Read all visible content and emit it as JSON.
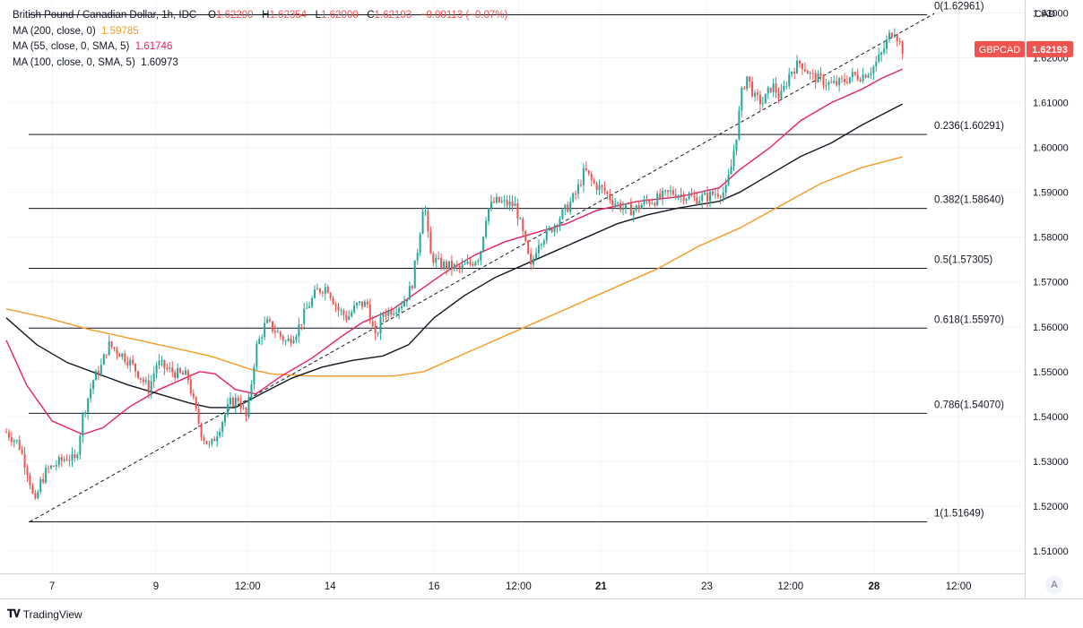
{
  "header": {
    "symbol_title": "British Pound / Canadian Dollar, 1h, IDC",
    "open_label": "O",
    "open": "1.62200",
    "high_label": "H",
    "high": "1.62354",
    "low_label": "L",
    "low": "1.62000",
    "close_label": "C",
    "close": "1.62193",
    "change": "−0.00113 (−0.07%)",
    "ma200_label": "MA (200, close, 0)",
    "ma200_value": "1.59785",
    "ma55_label": "MA (55, close, 0, SMA, 5)",
    "ma55_value": "1.61746",
    "ma100_label": "MA (100, close, 0, SMA, 5)",
    "ma100_value": "1.60973"
  },
  "axis_unit": "CAD",
  "price_badge": {
    "symbol": "GBPCAD",
    "price": "1.62193"
  },
  "brand": {
    "name": "TradingView"
  },
  "auto_scale_button": "A",
  "colors": {
    "up": "#26a69a",
    "down": "#ef5350",
    "ma200": "#f59a23",
    "ma55": "#e91e63",
    "ma100": "#131722",
    "fib": "#131722",
    "grid": "#f0f3fa"
  },
  "chart_data": {
    "type": "candlestick",
    "ylim": [
      1.505,
      1.6325
    ],
    "y_ticks": [
      "1.51000",
      "1.52000",
      "1.53000",
      "1.54000",
      "1.55000",
      "1.56000",
      "1.57000",
      "1.58000",
      "1.59000",
      "1.60000",
      "1.61000",
      "1.62000",
      "1.63000"
    ],
    "x_ticks": [
      {
        "t": 0.045,
        "label": "7",
        "bold": false
      },
      {
        "t": 0.147,
        "label": "9",
        "bold": false
      },
      {
        "t": 0.237,
        "label": "12:00",
        "bold": false
      },
      {
        "t": 0.318,
        "label": "14",
        "bold": false
      },
      {
        "t": 0.42,
        "label": "16",
        "bold": false
      },
      {
        "t": 0.503,
        "label": "12:00",
        "bold": false
      },
      {
        "t": 0.584,
        "label": "21",
        "bold": true
      },
      {
        "t": 0.688,
        "label": "23",
        "bold": false
      },
      {
        "t": 0.77,
        "label": "12:00",
        "bold": false
      },
      {
        "t": 0.852,
        "label": "28",
        "bold": true
      },
      {
        "t": 0.935,
        "label": "12:00",
        "bold": false
      }
    ],
    "fib_levels": [
      {
        "ratio": "0",
        "price": 1.62961,
        "label": "0(1.62961)"
      },
      {
        "ratio": "0.236",
        "price": 1.60291,
        "label": "0.236(1.60291)"
      },
      {
        "ratio": "0.382",
        "price": 1.5864,
        "label": "0.382(1.58640)"
      },
      {
        "ratio": "0.5",
        "price": 1.57305,
        "label": "0.5(1.57305)"
      },
      {
        "ratio": "0.618",
        "price": 1.5597,
        "label": "0.618(1.55970)"
      },
      {
        "ratio": "0.786",
        "price": 1.5407,
        "label": "0.786(1.54070)"
      },
      {
        "ratio": "1",
        "price": 1.51649,
        "label": "1(1.51649)"
      }
    ],
    "trendline": {
      "from": {
        "t": 0.023,
        "price": 1.5165
      },
      "to": {
        "t": 0.892,
        "price": 1.6295
      }
    },
    "price_path": [
      [
        0.0,
        1.5365
      ],
      [
        0.012,
        1.534
      ],
      [
        0.022,
        1.527
      ],
      [
        0.028,
        1.52
      ],
      [
        0.033,
        1.525
      ],
      [
        0.04,
        1.528
      ],
      [
        0.05,
        1.5295
      ],
      [
        0.06,
        1.531
      ],
      [
        0.068,
        1.53
      ],
      [
        0.075,
        1.54
      ],
      [
        0.085,
        1.548
      ],
      [
        0.093,
        1.551
      ],
      [
        0.1,
        1.556
      ],
      [
        0.11,
        1.5545
      ],
      [
        0.12,
        1.5525
      ],
      [
        0.13,
        1.5495
      ],
      [
        0.14,
        1.546
      ],
      [
        0.148,
        1.552
      ],
      [
        0.158,
        1.5505
      ],
      [
        0.168,
        1.5495
      ],
      [
        0.178,
        1.549
      ],
      [
        0.185,
        1.542
      ],
      [
        0.192,
        1.536
      ],
      [
        0.2,
        1.533
      ],
      [
        0.21,
        1.538
      ],
      [
        0.22,
        1.543
      ],
      [
        0.228,
        1.544
      ],
      [
        0.236,
        1.5395
      ],
      [
        0.245,
        1.555
      ],
      [
        0.255,
        1.561
      ],
      [
        0.265,
        1.559
      ],
      [
        0.275,
        1.5565
      ],
      [
        0.285,
        1.559
      ],
      [
        0.295,
        1.564
      ],
      [
        0.305,
        1.568
      ],
      [
        0.315,
        1.569
      ],
      [
        0.325,
        1.564
      ],
      [
        0.335,
        1.562
      ],
      [
        0.345,
        1.565
      ],
      [
        0.355,
        1.565
      ],
      [
        0.362,
        1.557
      ],
      [
        0.37,
        1.563
      ],
      [
        0.38,
        1.564
      ],
      [
        0.39,
        1.5655
      ],
      [
        0.398,
        1.569
      ],
      [
        0.405,
        1.579
      ],
      [
        0.41,
        1.589
      ],
      [
        0.416,
        1.576
      ],
      [
        0.425,
        1.574
      ],
      [
        0.435,
        1.5735
      ],
      [
        0.445,
        1.573
      ],
      [
        0.455,
        1.574
      ],
      [
        0.465,
        1.576
      ],
      [
        0.472,
        1.586
      ],
      [
        0.48,
        1.588
      ],
      [
        0.49,
        1.5875
      ],
      [
        0.5,
        1.587
      ],
      [
        0.508,
        1.58
      ],
      [
        0.515,
        1.573
      ],
      [
        0.522,
        1.579
      ],
      [
        0.532,
        1.581
      ],
      [
        0.542,
        1.584
      ],
      [
        0.552,
        1.587
      ],
      [
        0.56,
        1.59
      ],
      [
        0.568,
        1.595
      ],
      [
        0.576,
        1.592
      ],
      [
        0.586,
        1.5905
      ],
      [
        0.596,
        1.588
      ],
      [
        0.606,
        1.5865
      ],
      [
        0.616,
        1.586
      ],
      [
        0.628,
        1.588
      ],
      [
        0.64,
        1.5885
      ],
      [
        0.652,
        1.59
      ],
      [
        0.664,
        1.5895
      ],
      [
        0.676,
        1.5885
      ],
      [
        0.688,
        1.589
      ],
      [
        0.698,
        1.59
      ],
      [
        0.706,
        1.59
      ],
      [
        0.712,
        1.596
      ],
      [
        0.717,
        1.603
      ],
      [
        0.722,
        1.612
      ],
      [
        0.727,
        1.616
      ],
      [
        0.735,
        1.611
      ],
      [
        0.743,
        1.61
      ],
      [
        0.752,
        1.614
      ],
      [
        0.76,
        1.611
      ],
      [
        0.77,
        1.617
      ],
      [
        0.78,
        1.619
      ],
      [
        0.79,
        1.616
      ],
      [
        0.8,
        1.615
      ],
      [
        0.81,
        1.614
      ],
      [
        0.82,
        1.6145
      ],
      [
        0.83,
        1.616
      ],
      [
        0.84,
        1.616
      ],
      [
        0.85,
        1.6175
      ],
      [
        0.86,
        1.621
      ],
      [
        0.866,
        1.6245
      ],
      [
        0.872,
        1.6265
      ],
      [
        0.876,
        1.624
      ],
      [
        0.88,
        1.6219
      ]
    ],
    "series": [
      {
        "name": "MA (200, close, 0)",
        "color_key": "ma200",
        "points": [
          [
            0.0,
            1.564
          ],
          [
            0.04,
            1.562
          ],
          [
            0.08,
            1.5595
          ],
          [
            0.12,
            1.5575
          ],
          [
            0.16,
            1.5555
          ],
          [
            0.2,
            1.5535
          ],
          [
            0.24,
            1.5505
          ],
          [
            0.26,
            1.5495
          ],
          [
            0.3,
            1.549
          ],
          [
            0.34,
            1.549
          ],
          [
            0.38,
            1.549
          ],
          [
            0.41,
            1.55
          ],
          [
            0.44,
            1.553
          ],
          [
            0.48,
            1.557
          ],
          [
            0.52,
            1.561
          ],
          [
            0.56,
            1.565
          ],
          [
            0.6,
            1.569
          ],
          [
            0.64,
            1.573
          ],
          [
            0.68,
            1.578
          ],
          [
            0.72,
            1.582
          ],
          [
            0.76,
            1.587
          ],
          [
            0.8,
            1.592
          ],
          [
            0.84,
            1.5955
          ],
          [
            0.88,
            1.5979
          ]
        ]
      },
      {
        "name": "MA (55, close, 0, SMA, 5)",
        "color_key": "ma55",
        "points": [
          [
            0.0,
            1.557
          ],
          [
            0.02,
            1.547
          ],
          [
            0.045,
            1.539
          ],
          [
            0.075,
            1.536
          ],
          [
            0.095,
            1.5375
          ],
          [
            0.12,
            1.542
          ],
          [
            0.15,
            1.546
          ],
          [
            0.17,
            1.548
          ],
          [
            0.19,
            1.55
          ],
          [
            0.205,
            1.5495
          ],
          [
            0.225,
            1.546
          ],
          [
            0.245,
            1.545
          ],
          [
            0.27,
            1.549
          ],
          [
            0.3,
            1.553
          ],
          [
            0.33,
            1.558
          ],
          [
            0.35,
            1.561
          ],
          [
            0.38,
            1.564
          ],
          [
            0.405,
            1.568
          ],
          [
            0.43,
            1.572
          ],
          [
            0.46,
            1.576
          ],
          [
            0.49,
            1.579
          ],
          [
            0.52,
            1.581
          ],
          [
            0.55,
            1.583
          ],
          [
            0.58,
            1.586
          ],
          [
            0.62,
            1.588
          ],
          [
            0.66,
            1.589
          ],
          [
            0.7,
            1.591
          ],
          [
            0.72,
            1.595
          ],
          [
            0.75,
            1.6
          ],
          [
            0.78,
            1.606
          ],
          [
            0.81,
            1.61
          ],
          [
            0.84,
            1.613
          ],
          [
            0.86,
            1.6155
          ],
          [
            0.88,
            1.6175
          ]
        ]
      },
      {
        "name": "MA (100, close, 0, SMA, 5)",
        "color_key": "ma100",
        "points": [
          [
            0.0,
            1.562
          ],
          [
            0.03,
            1.556
          ],
          [
            0.06,
            1.552
          ],
          [
            0.09,
            1.5495
          ],
          [
            0.12,
            1.547
          ],
          [
            0.15,
            1.545
          ],
          [
            0.18,
            1.543
          ],
          [
            0.2,
            1.542
          ],
          [
            0.225,
            1.542
          ],
          [
            0.25,
            1.545
          ],
          [
            0.28,
            1.5485
          ],
          [
            0.31,
            1.551
          ],
          [
            0.34,
            1.5525
          ],
          [
            0.37,
            1.5535
          ],
          [
            0.395,
            1.556
          ],
          [
            0.42,
            1.562
          ],
          [
            0.45,
            1.567
          ],
          [
            0.48,
            1.571
          ],
          [
            0.51,
            1.574
          ],
          [
            0.54,
            1.577
          ],
          [
            0.57,
            1.58
          ],
          [
            0.6,
            1.583
          ],
          [
            0.63,
            1.585
          ],
          [
            0.66,
            1.5865
          ],
          [
            0.7,
            1.588
          ],
          [
            0.72,
            1.59
          ],
          [
            0.75,
            1.594
          ],
          [
            0.78,
            1.598
          ],
          [
            0.81,
            1.601
          ],
          [
            0.84,
            1.605
          ],
          [
            0.88,
            1.6097
          ]
        ]
      }
    ]
  }
}
